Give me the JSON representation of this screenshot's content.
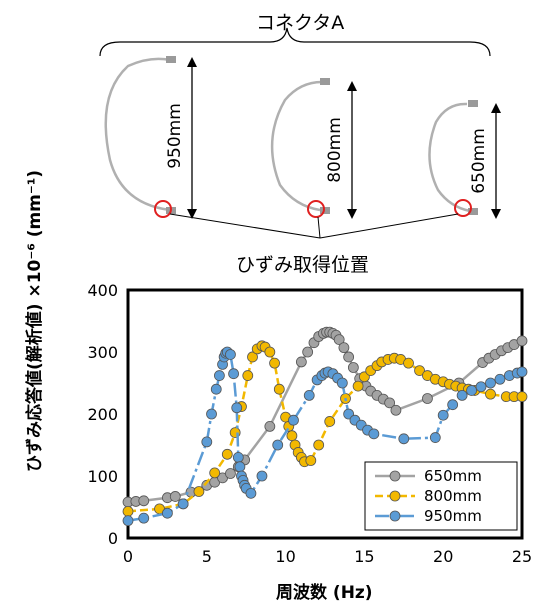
{
  "diagram": {
    "connector_label": "コネクタA",
    "strain_label": "ひずみ取得位置",
    "cables": [
      {
        "length_label": "950mm"
      },
      {
        "length_label": "800mm"
      },
      {
        "length_label": "650mm"
      }
    ]
  },
  "chart_data": {
    "type": "scatter",
    "xlabel": "周波数 (Hz)",
    "ylabel": "ひずみ応答値(解析値) ×10⁻⁶ (mm⁻¹)",
    "xlim": [
      0,
      25
    ],
    "ylim": [
      0,
      400
    ],
    "xticks": [
      0,
      5,
      10,
      15,
      20,
      25
    ],
    "yticks": [
      0,
      100,
      200,
      300,
      400
    ],
    "grid": false,
    "legend_position": "bottom-right",
    "series": [
      {
        "name": "650mm",
        "color": "#a3a3a3",
        "dash": "solid",
        "x": [
          0,
          0.5,
          1.0,
          2.5,
          3.0,
          4.0,
          5.0,
          5.5,
          6.0,
          6.5,
          7.0,
          7.4,
          9.0,
          11.0,
          11.4,
          11.8,
          12.1,
          12.4,
          12.6,
          12.8,
          13.0,
          13.2,
          13.4,
          13.7,
          14.0,
          14.3,
          14.7,
          15.1,
          15.4,
          15.8,
          16.2,
          16.6,
          17.0,
          19.0,
          21.0,
          22.5,
          22.9,
          23.3,
          23.7,
          24.1,
          24.5,
          25.0
        ],
        "y": [
          58,
          59,
          60,
          65,
          67,
          74,
          85,
          90,
          97,
          104,
          115,
          126,
          180,
          284,
          300,
          315,
          325,
          330,
          332,
          332,
          330,
          327,
          320,
          307,
          292,
          275,
          257,
          245,
          237,
          230,
          224,
          218,
          206,
          225,
          250,
          283,
          290,
          296,
          302,
          307,
          312,
          318
        ]
      },
      {
        "name": "800mm",
        "color": "#f2b800",
        "dash": "8,4",
        "x": [
          0,
          2.0,
          3.5,
          4.5,
          5.5,
          6.3,
          6.8,
          7.2,
          7.6,
          7.9,
          8.2,
          8.5,
          8.7,
          9.0,
          9.3,
          9.6,
          10.0,
          10.2,
          10.4,
          10.6,
          10.8,
          11.0,
          11.2,
          11.6,
          12.1,
          12.8,
          13.8,
          14.6,
          15.0,
          15.4,
          15.8,
          16.1,
          16.5,
          16.9,
          17.3,
          17.8,
          18.5,
          19.0,
          19.5,
          20.0,
          20.4,
          20.8,
          21.2,
          21.6,
          22.0,
          23.0,
          24.0,
          24.5,
          25.0
        ],
        "y": [
          43,
          47,
          55,
          75,
          105,
          135,
          170,
          212,
          262,
          292,
          305,
          310,
          308,
          300,
          282,
          240,
          195,
          180,
          165,
          150,
          138,
          130,
          123,
          125,
          150,
          188,
          225,
          245,
          260,
          270,
          278,
          284,
          288,
          290,
          288,
          282,
          270,
          262,
          256,
          252,
          248,
          245,
          242,
          240,
          238,
          232,
          228,
          228,
          228
        ]
      },
      {
        "name": "950mm",
        "color": "#5b9bd5",
        "dash": "14,4,3,4",
        "x": [
          0,
          1.0,
          2.5,
          3.5,
          5.0,
          5.3,
          5.6,
          5.8,
          6.0,
          6.1,
          6.2,
          6.3,
          6.5,
          6.7,
          6.9,
          7.0,
          7.1,
          7.2,
          7.3,
          7.4,
          7.5,
          7.8,
          8.5,
          9.5,
          10.5,
          11.5,
          12.0,
          12.3,
          12.5,
          12.7,
          13.0,
          13.3,
          13.6,
          14.0,
          14.4,
          14.8,
          15.2,
          15.6,
          17.5,
          19.5,
          20.0,
          20.6,
          21.2,
          21.8,
          22.4,
          23.0,
          23.6,
          24.2,
          24.7,
          25.0
        ],
        "y": [
          28,
          32,
          40,
          55,
          155,
          200,
          240,
          262,
          280,
          292,
          298,
          300,
          296,
          265,
          210,
          130,
          115,
          100,
          93,
          85,
          80,
          72,
          100,
          150,
          190,
          230,
          255,
          262,
          266,
          268,
          265,
          258,
          250,
          200,
          190,
          182,
          174,
          168,
          160,
          162,
          198,
          215,
          230,
          238,
          244,
          250,
          256,
          262,
          266,
          268
        ]
      }
    ]
  }
}
